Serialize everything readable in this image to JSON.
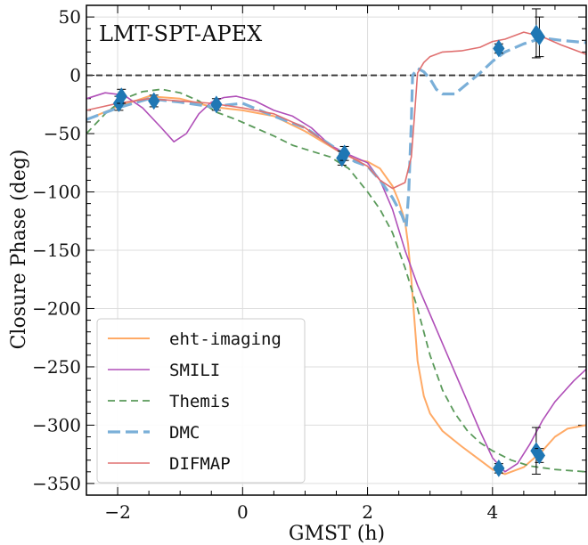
{
  "chart_data": {
    "type": "line",
    "title": "LMT-SPT-APEX",
    "xlabel": "GMST (h)",
    "ylabel": "Closure Phase (deg)",
    "xlim": [
      -2.5,
      5.5
    ],
    "ylim": [
      -360,
      60
    ],
    "xticks": [
      -2,
      0,
      2,
      4
    ],
    "yticks": [
      50,
      0,
      -50,
      -100,
      -150,
      -200,
      -250,
      -300,
      -350
    ],
    "grid": true,
    "legend_position": "bottom-left",
    "zero_line": {
      "y": 0,
      "style": "dashed",
      "color": "#333333"
    },
    "series": [
      {
        "name": "eht-imaging",
        "color": "#ffaa66",
        "style": "solid",
        "width": 2,
        "x": [
          -2.5,
          -2.0,
          -1.5,
          -1.0,
          -0.5,
          0.0,
          0.5,
          1.0,
          1.5,
          1.8,
          2.0,
          2.2,
          2.4,
          2.5,
          2.6,
          2.65,
          2.7,
          2.75,
          2.8,
          2.9,
          3.0,
          3.2,
          3.5,
          3.8,
          4.0,
          4.2,
          4.5,
          4.8,
          5.0,
          5.2,
          5.5
        ],
        "y": [
          -38,
          -27,
          -18,
          -20,
          -27,
          -30,
          -35,
          -48,
          -64,
          -72,
          -74,
          -80,
          -95,
          -108,
          -125,
          -145,
          -175,
          -210,
          -245,
          -275,
          -290,
          -305,
          -318,
          -330,
          -338,
          -342,
          -336,
          -322,
          -310,
          -303,
          -300
        ]
      },
      {
        "name": "SMILI",
        "color": "#b04fb8",
        "style": "solid",
        "width": 1.6,
        "x": [
          -2.5,
          -2.2,
          -1.9,
          -1.6,
          -1.3,
          -1.1,
          -0.9,
          -0.7,
          -0.5,
          -0.3,
          -0.1,
          0.2,
          0.5,
          0.8,
          1.1,
          1.4,
          1.7,
          2.0,
          2.2,
          2.4,
          2.6,
          2.8,
          3.0,
          3.2,
          3.4,
          3.6,
          3.8,
          4.0,
          4.2,
          4.4,
          4.6,
          4.8,
          5.0,
          5.3,
          5.5
        ],
        "y": [
          -20,
          -15,
          -17,
          -28,
          -45,
          -57,
          -50,
          -33,
          -23,
          -19,
          -18,
          -22,
          -30,
          -35,
          -45,
          -60,
          -68,
          -75,
          -90,
          -115,
          -150,
          -180,
          -205,
          -230,
          -255,
          -280,
          -305,
          -328,
          -340,
          -333,
          -316,
          -296,
          -280,
          -262,
          -252
        ]
      },
      {
        "name": "Themis",
        "color": "#5a9a5a",
        "style": "dashed",
        "width": 1.8,
        "x": [
          -2.5,
          -2.2,
          -1.9,
          -1.6,
          -1.3,
          -1.0,
          -0.7,
          -0.4,
          -0.1,
          0.2,
          0.5,
          0.8,
          1.1,
          1.4,
          1.7,
          2.0,
          2.2,
          2.4,
          2.6,
          2.8,
          3.0,
          3.2,
          3.4,
          3.6,
          3.8,
          4.0,
          4.3,
          4.6,
          5.0,
          5.5
        ],
        "y": [
          -50,
          -33,
          -20,
          -14,
          -12,
          -15,
          -22,
          -32,
          -38,
          -45,
          -52,
          -60,
          -65,
          -70,
          -80,
          -100,
          -115,
          -135,
          -165,
          -200,
          -240,
          -270,
          -290,
          -305,
          -315,
          -322,
          -330,
          -335,
          -338,
          -340
        ]
      },
      {
        "name": "DMC",
        "color": "#7aafd8",
        "style": "dashed",
        "width": 3.2,
        "x": [
          -2.5,
          -2.0,
          -1.5,
          -1.0,
          -0.5,
          0.0,
          0.5,
          1.0,
          1.5,
          1.8,
          2.0,
          2.2,
          2.4,
          2.55,
          2.62,
          2.66,
          2.7,
          2.72,
          2.8,
          2.9,
          3.0,
          3.1,
          3.2,
          3.4,
          3.6,
          3.8,
          4.0,
          4.2,
          4.5,
          4.8,
          5.1,
          5.5
        ],
        "y": [
          -38,
          -28,
          -20,
          -23,
          -27,
          -24,
          -35,
          -45,
          -63,
          -74,
          -78,
          -90,
          -105,
          -120,
          -130,
          -100,
          -40,
          0,
          6,
          3,
          -3,
          -12,
          -16,
          -16,
          -7,
          2,
          12,
          20,
          27,
          32,
          30,
          28
        ]
      },
      {
        "name": "DIFMAP",
        "color": "#e07070",
        "style": "solid",
        "width": 1.6,
        "x": [
          -2.5,
          -2.0,
          -1.5,
          -1.0,
          -0.5,
          0.0,
          0.5,
          1.0,
          1.5,
          1.8,
          2.0,
          2.2,
          2.4,
          2.6,
          2.7,
          2.75,
          2.8,
          2.9,
          3.0,
          3.2,
          3.5,
          3.8,
          4.0,
          4.2,
          4.5,
          4.8,
          5.1,
          5.5
        ],
        "y": [
          -30,
          -24,
          -20,
          -22,
          -24,
          -28,
          -33,
          -45,
          -64,
          -72,
          -78,
          -90,
          -97,
          -92,
          -70,
          -35,
          2,
          11,
          16,
          20,
          21,
          24,
          29,
          31,
          37,
          33,
          26,
          18
        ]
      }
    ],
    "observations": {
      "name": "data",
      "color": "#1f77b4",
      "marker": "diamond",
      "points": [
        {
          "x": -1.98,
          "y": -24,
          "err": 6
        },
        {
          "x": -1.94,
          "y": -18,
          "err": 6
        },
        {
          "x": -1.42,
          "y": -22,
          "err": 5
        },
        {
          "x": -0.42,
          "y": -25,
          "err": 5
        },
        {
          "x": 1.59,
          "y": -71,
          "err": 6
        },
        {
          "x": 1.63,
          "y": -67,
          "err": 6
        },
        {
          "x": 4.1,
          "y": 23,
          "err": 4
        },
        {
          "x": 4.7,
          "y": 36,
          "err": 21
        },
        {
          "x": 4.75,
          "y": 33,
          "err": 17
        },
        {
          "x": 4.1,
          "y": -337,
          "err": 4
        },
        {
          "x": 4.7,
          "y": -322,
          "err": 20
        },
        {
          "x": 4.75,
          "y": -326,
          "err": 6
        }
      ]
    }
  }
}
